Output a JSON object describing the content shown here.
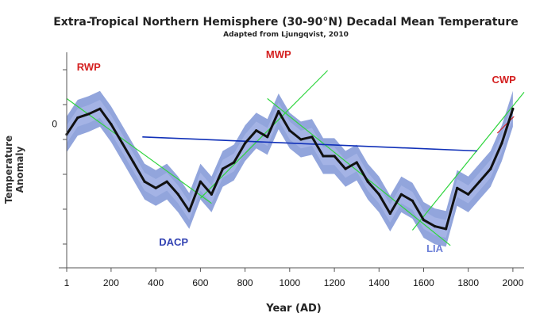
{
  "chart_data": {
    "type": "line",
    "title": "Extra-Tropical Northern Hemisphere (30-90°N) Decadal Mean Temperature",
    "subtitle": "Adapted from Ljungqvist, 2010",
    "xlabel": "Year (AD)",
    "ylabel": "Temperature Anomaly",
    "xlim": [
      1,
      2050
    ],
    "ylim": [
      -1.1,
      0.55
    ],
    "x_ticks": [
      1,
      200,
      400,
      600,
      800,
      1000,
      1200,
      1400,
      1600,
      1800,
      2000
    ],
    "y_ticks": [
      0
    ],
    "grid": false,
    "series": [
      {
        "x": [
          1,
          50,
          100,
          150,
          200,
          250,
          300,
          350,
          400,
          450,
          500,
          550,
          600,
          650,
          700,
          750,
          800,
          850,
          900,
          950,
          1000,
          1050,
          1100,
          1150,
          1200,
          1250,
          1300,
          1350,
          1400,
          1450,
          1500,
          1550,
          1600,
          1650,
          1700,
          1750,
          1800,
          1850,
          1900,
          1950,
          2000
        ],
        "y": [
          -0.08,
          0.05,
          0.08,
          0.12,
          0.0,
          -0.15,
          -0.3,
          -0.45,
          -0.5,
          -0.45,
          -0.55,
          -0.68,
          -0.45,
          -0.55,
          -0.35,
          -0.3,
          -0.15,
          -0.05,
          -0.1,
          0.1,
          -0.05,
          -0.12,
          -0.1,
          -0.25,
          -0.25,
          -0.35,
          -0.3,
          -0.45,
          -0.55,
          -0.7,
          -0.55,
          -0.6,
          -0.75,
          -0.8,
          -0.82,
          -0.5,
          -0.55,
          -0.45,
          -0.35,
          -0.15,
          0.12
        ],
        "color": "#111111"
      }
    ],
    "annotations": [
      {
        "text": "RWP",
        "x": 100,
        "y": 0.42,
        "color": "#d42020"
      },
      {
        "text": "MWP",
        "x": 950,
        "y": 0.52,
        "color": "#d42020"
      },
      {
        "text": "CWP",
        "x": 1960,
        "y": 0.32,
        "color": "#d42020"
      },
      {
        "text": "DACP",
        "x": 480,
        "y": -0.95,
        "color": "#3343b3"
      },
      {
        "text": "LIA",
        "x": 1650,
        "y": -1.0,
        "color": "#6d80d8"
      }
    ],
    "trend_lines": [
      {
        "color": "#2fd53e",
        "x": [
          1,
          650
        ],
        "y": [
          0.2,
          -0.62
        ]
      },
      {
        "color": "#2fd53e",
        "x": [
          600,
          1170
        ],
        "y": [
          -0.58,
          0.42
        ]
      },
      {
        "color": "#2fd53e",
        "x": [
          900,
          1720
        ],
        "y": [
          0.2,
          -0.95
        ]
      },
      {
        "color": "#2fd53e",
        "x": [
          1550,
          2050
        ],
        "y": [
          -0.83,
          0.25
        ]
      },
      {
        "color": "#1030b8",
        "x": [
          340,
          1840
        ],
        "y": [
          -0.1,
          -0.21
        ]
      },
      {
        "color": "#d42020",
        "x": [
          1930,
          2005
        ],
        "y": [
          -0.07,
          0.06
        ]
      }
    ]
  }
}
